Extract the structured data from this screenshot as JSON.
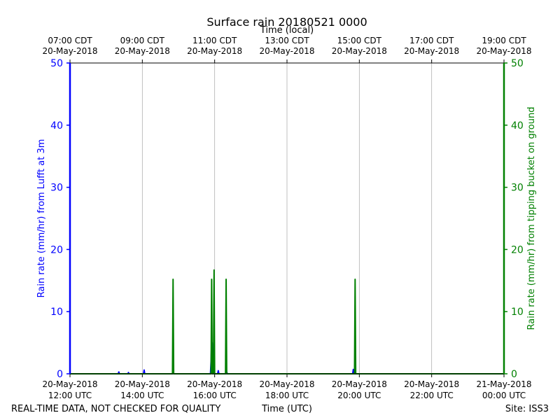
{
  "chart_data": {
    "type": "line",
    "title": "Surface rain 20180521 0000",
    "x_top_label": "Time (local)",
    "x_bottom_label": "Time (UTC)",
    "x_range": [
      "2018-05-20 12:00 UTC",
      "2018-05-21 00:00 UTC"
    ],
    "top_ticks": [
      {
        "time": "07:00 CDT",
        "date": "20-May-2018"
      },
      {
        "time": "09:00 CDT",
        "date": "20-May-2018"
      },
      {
        "time": "11:00 CDT",
        "date": "20-May-2018"
      },
      {
        "time": "13:00 CDT",
        "date": "20-May-2018"
      },
      {
        "time": "15:00 CDT",
        "date": "20-May-2018"
      },
      {
        "time": "17:00 CDT",
        "date": "20-May-2018"
      },
      {
        "time": "19:00 CDT",
        "date": "20-May-2018"
      }
    ],
    "bottom_ticks": [
      {
        "date": "20-May-2018",
        "time": "12:00 UTC"
      },
      {
        "date": "20-May-2018",
        "time": "14:00 UTC"
      },
      {
        "date": "20-May-2018",
        "time": "16:00 UTC"
      },
      {
        "date": "20-May-2018",
        "time": "18:00 UTC"
      },
      {
        "date": "20-May-2018",
        "time": "20:00 UTC"
      },
      {
        "date": "20-May-2018",
        "time": "22:00 UTC"
      },
      {
        "date": "21-May-2018",
        "time": "00:00 UTC"
      }
    ],
    "y_left_label": "Rain rate (mm/hr) from Lufft at 3m",
    "y_right_label": "Rain rate (mm/hr) from tipping bucket on ground",
    "y_ticks": [
      0,
      10,
      20,
      30,
      40,
      50
    ],
    "ylim": [
      0,
      50
    ],
    "grid": "vertical",
    "series": [
      {
        "color": "#0000ff",
        "axis": "left",
        "points": [
          [
            "12:00",
            0
          ],
          [
            "13:20",
            0
          ],
          [
            "13:21",
            0.3
          ],
          [
            "13:22",
            0
          ],
          [
            "13:36",
            0
          ],
          [
            "13:37",
            0.2
          ],
          [
            "13:38",
            0
          ],
          [
            "14:02",
            0
          ],
          [
            "14:03",
            0.6
          ],
          [
            "14:04",
            0
          ],
          [
            "14:50",
            0
          ],
          [
            "14:51",
            1.0
          ],
          [
            "14:52",
            0
          ],
          [
            "15:53",
            0
          ],
          [
            "15:54",
            2.0
          ],
          [
            "15:55",
            5.0
          ],
          [
            "15:56",
            5.0
          ],
          [
            "15:57",
            1.0
          ],
          [
            "15:58",
            0
          ],
          [
            "16:05",
            0
          ],
          [
            "16:06",
            0.5
          ],
          [
            "16:07",
            0
          ],
          [
            "16:19",
            0
          ],
          [
            "16:20",
            0.3
          ],
          [
            "16:21",
            0
          ],
          [
            "19:49",
            0
          ],
          [
            "19:50",
            0.7
          ],
          [
            "19:51",
            0
          ],
          [
            "00:00",
            0
          ]
        ]
      },
      {
        "color": "#008000",
        "axis": "right",
        "points": [
          [
            "12:00",
            0
          ],
          [
            "14:50",
            0
          ],
          [
            "14:51",
            15.2
          ],
          [
            "14:52",
            0
          ],
          [
            "15:54",
            0
          ],
          [
            "15:55",
            15.2
          ],
          [
            "15:56",
            0
          ],
          [
            "15:58",
            0
          ],
          [
            "15:59",
            16.7
          ],
          [
            "16:00",
            0
          ],
          [
            "16:18",
            0
          ],
          [
            "16:19",
            15.2
          ],
          [
            "16:20",
            0
          ],
          [
            "19:52",
            0
          ],
          [
            "19:53",
            15.2
          ],
          [
            "19:54",
            0
          ],
          [
            "00:00",
            0
          ]
        ]
      }
    ]
  },
  "footer": {
    "left": "REAL-TIME DATA, NOT CHECKED FOR QUALITY",
    "center": "Time (UTC)",
    "right": "Site: ISS3"
  },
  "colors": {
    "left_axis": "#0000ff",
    "right_axis": "#008000",
    "grid": "#b0b0b0"
  }
}
